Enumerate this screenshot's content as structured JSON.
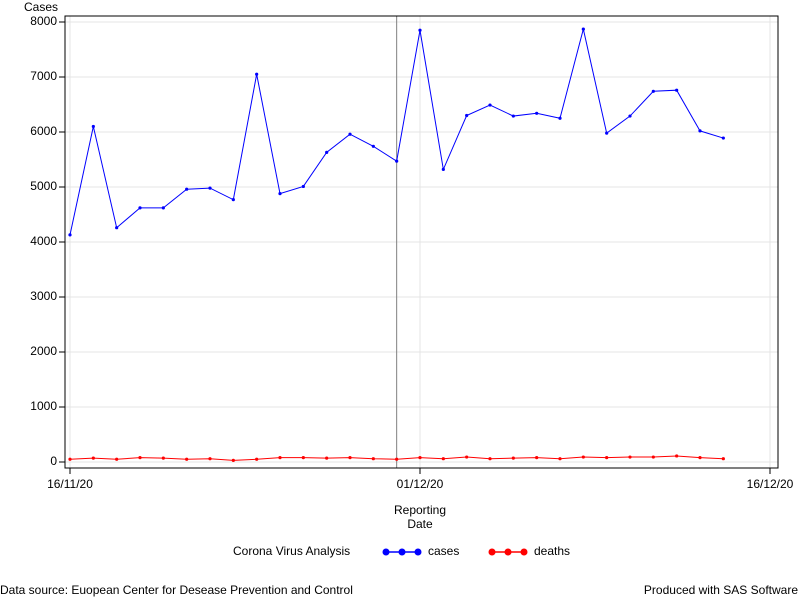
{
  "chart_data": {
    "type": "line",
    "y_axis_title": "Cases",
    "xlabel": [
      "Reporting",
      "Date"
    ],
    "legend_title": "Corona Virus Analysis",
    "footnote_left": "Data source: Euopean Center for Desease Prevention and Control",
    "footnote_right": "Produced with SAS Software",
    "x": [
      "16/11/20",
      "17/11/20",
      "18/11/20",
      "19/11/20",
      "20/11/20",
      "21/11/20",
      "22/11/20",
      "23/11/20",
      "24/11/20",
      "25/11/20",
      "26/11/20",
      "27/11/20",
      "28/11/20",
      "29/11/20",
      "30/11/20",
      "01/12/20",
      "02/12/20",
      "03/12/20",
      "04/12/20",
      "05/12/20",
      "06/12/20",
      "07/12/20",
      "08/12/20",
      "09/12/20",
      "10/12/20",
      "11/12/20",
      "12/12/20",
      "13/12/20",
      "14/12/20"
    ],
    "series": [
      {
        "name": "cases",
        "color": "#0000ff",
        "values": [
          4130,
          6100,
          4260,
          4620,
          4620,
          4960,
          4980,
          4770,
          7050,
          4880,
          5010,
          5630,
          5960,
          5740,
          5470,
          7850,
          5320,
          6300,
          6490,
          6290,
          6340,
          6250,
          7870,
          5980,
          6290,
          6740,
          6760,
          6020,
          5890
        ]
      },
      {
        "name": "deaths",
        "color": "#ff0000",
        "values": [
          50,
          70,
          50,
          80,
          70,
          50,
          60,
          30,
          50,
          80,
          80,
          70,
          80,
          60,
          50,
          80,
          60,
          90,
          60,
          70,
          80,
          60,
          90,
          80,
          90,
          90,
          110,
          80,
          60
        ]
      }
    ],
    "xlim": [
      "16/11/20",
      "16/12/20"
    ],
    "xticks": [
      "16/11/20",
      "01/12/20",
      "16/12/20"
    ],
    "ylim": [
      0,
      8000
    ],
    "yticks": [
      0,
      1000,
      2000,
      3000,
      4000,
      5000,
      6000,
      7000,
      8000
    ],
    "reference_line_x": "30/11/20",
    "grid": true
  }
}
